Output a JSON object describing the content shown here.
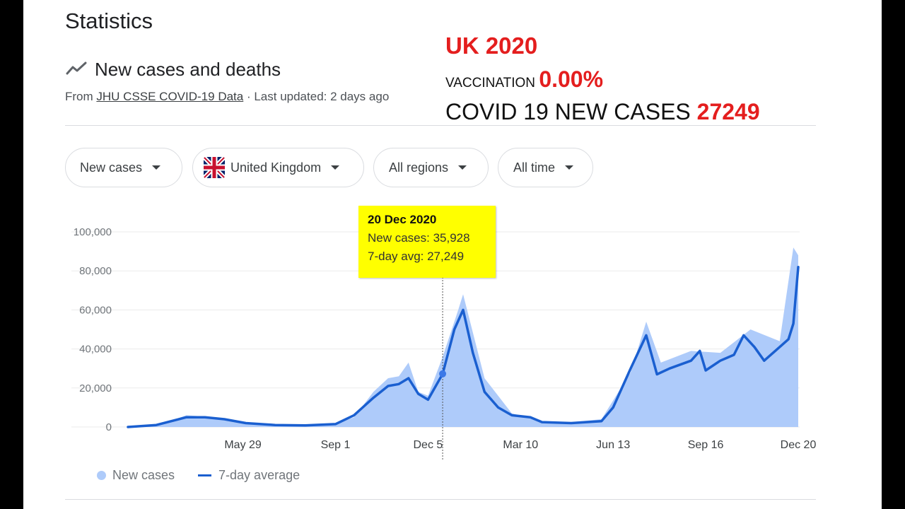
{
  "header": {
    "title": "Statistics",
    "section_heading": "New cases and deaths",
    "source_prefix": "From ",
    "source_link": "JHU CSSE COVID-19 Data",
    "source_suffix": " · Last updated: 2 days ago"
  },
  "filters": {
    "metric": "New cases",
    "country": "United Kingdom",
    "regions": "All regions",
    "time": "All time"
  },
  "annotation": {
    "title": "UK 2020",
    "vaccination_label": "VACCINATION ",
    "vaccination_value": "0.00%",
    "cases_label": "COVID 19 NEW CASES ",
    "cases_value": "27249"
  },
  "tooltip": {
    "date": "20 Dec 2020",
    "new_cases": "New cases: 35,928",
    "avg": "7-day avg: 27,249"
  },
  "legend": {
    "new_cases": "New cases",
    "avg": "7-day average"
  },
  "colors": {
    "bars": "#aecbfa",
    "line": "#1a5fd0",
    "annotation_red": "#e41e1e",
    "tooltip_bg": "#ffff00"
  },
  "chart_data": {
    "type": "line",
    "ylim": [
      0,
      100000
    ],
    "yticks": [
      "100,000",
      "80,000",
      "60,000",
      "40,000",
      "20,000",
      "0"
    ],
    "ytick_values": [
      100000,
      80000,
      60000,
      40000,
      20000,
      0
    ],
    "xticks": [
      "May 29",
      "Sep 1",
      "Dec 5",
      "Mar 10",
      "Jun 13",
      "Sep 16",
      "Dec 20"
    ],
    "xtick_values": [
      "2020-05-29",
      "2020-09-01",
      "2020-12-05",
      "2021-03-10",
      "2021-06-13",
      "2021-09-16",
      "2021-12-20"
    ],
    "xlim": [
      "2020-02-01",
      "2021-12-20"
    ],
    "highlight": {
      "x": "2020-12-20",
      "y": 27249
    },
    "series": [
      {
        "name": "New cases",
        "kind": "bars",
        "x": [
          "2020-02-01",
          "2020-03-01",
          "2020-04-01",
          "2020-05-01",
          "2020-06-01",
          "2020-07-01",
          "2020-08-01",
          "2020-09-01",
          "2020-09-20",
          "2020-10-10",
          "2020-10-25",
          "2020-11-05",
          "2020-11-15",
          "2020-11-25",
          "2020-12-05",
          "2020-12-20",
          "2021-01-05",
          "2021-01-10",
          "2021-02-01",
          "2021-03-01",
          "2021-04-01",
          "2021-05-01",
          "2021-06-01",
          "2021-07-01",
          "2021-07-17",
          "2021-08-01",
          "2021-09-01",
          "2021-10-01",
          "2021-11-01",
          "2021-12-01",
          "2021-12-15",
          "2021-12-20"
        ],
        "values": [
          0,
          500,
          6000,
          5000,
          1500,
          700,
          1000,
          1500,
          5000,
          18000,
          25000,
          26000,
          33000,
          18000,
          16000,
          35928,
          60000,
          68000,
          25000,
          7000,
          3000,
          2500,
          4000,
          28000,
          54000,
          33000,
          39000,
          38000,
          50000,
          44000,
          92000,
          88000
        ]
      },
      {
        "name": "7-day average",
        "kind": "line",
        "x": [
          "2020-02-01",
          "2020-03-01",
          "2020-04-01",
          "2020-04-20",
          "2020-05-10",
          "2020-06-01",
          "2020-07-01",
          "2020-08-01",
          "2020-09-01",
          "2020-09-20",
          "2020-10-10",
          "2020-10-25",
          "2020-11-05",
          "2020-11-15",
          "2020-11-25",
          "2020-12-05",
          "2020-12-20",
          "2021-01-01",
          "2021-01-10",
          "2021-01-20",
          "2021-02-01",
          "2021-02-15",
          "2021-03-01",
          "2021-03-20",
          "2021-04-01",
          "2021-05-01",
          "2021-06-01",
          "2021-06-13",
          "2021-07-01",
          "2021-07-17",
          "2021-07-28",
          "2021-08-10",
          "2021-09-01",
          "2021-09-10",
          "2021-09-16",
          "2021-10-01",
          "2021-10-15",
          "2021-10-25",
          "2021-11-05",
          "2021-11-15",
          "2021-12-01",
          "2021-12-10",
          "2021-12-15",
          "2021-12-20"
        ],
        "values": [
          0,
          1000,
          5000,
          5000,
          4000,
          2000,
          1000,
          800,
          1500,
          6000,
          15000,
          21000,
          22000,
          25000,
          17000,
          14000,
          27249,
          50000,
          60000,
          38000,
          18000,
          10000,
          6000,
          5000,
          2500,
          2000,
          3000,
          10000,
          30000,
          47000,
          27000,
          30000,
          34000,
          39000,
          29000,
          34000,
          37000,
          47000,
          41000,
          34000,
          41000,
          45000,
          53000,
          82000
        ]
      }
    ]
  }
}
